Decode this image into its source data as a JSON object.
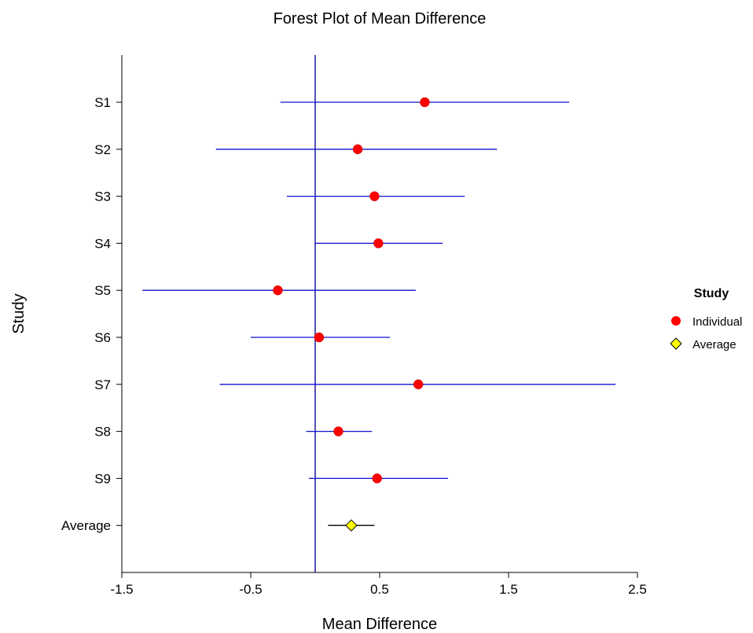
{
  "chart_data": {
    "type": "scatter",
    "title": "Forest Plot of Mean Difference",
    "xlabel": "Mean Difference",
    "ylabel": "Study",
    "xlim": [
      -1.5,
      2.5
    ],
    "xticks": [
      "-1.5",
      "-0.5",
      "0.5",
      "1.5",
      "2.5"
    ],
    "reference_line": 0.0,
    "studies": [
      {
        "label": "S1",
        "estimate": 0.85,
        "lower": -0.27,
        "upper": 1.97
      },
      {
        "label": "S2",
        "estimate": 0.33,
        "lower": -0.77,
        "upper": 1.41
      },
      {
        "label": "S3",
        "estimate": 0.46,
        "lower": -0.22,
        "upper": 1.16
      },
      {
        "label": "S4",
        "estimate": 0.49,
        "lower": 0.0,
        "upper": 0.99
      },
      {
        "label": "S5",
        "estimate": -0.29,
        "lower": -1.34,
        "upper": 0.78
      },
      {
        "label": "S6",
        "estimate": 0.03,
        "lower": -0.5,
        "upper": 0.58
      },
      {
        "label": "S7",
        "estimate": 0.8,
        "lower": -0.74,
        "upper": 2.33
      },
      {
        "label": "S8",
        "estimate": 0.18,
        "lower": -0.07,
        "upper": 0.44
      },
      {
        "label": "S9",
        "estimate": 0.48,
        "lower": -0.05,
        "upper": 1.03
      }
    ],
    "average": {
      "label": "Average",
      "estimate": 0.28,
      "lower": 0.1,
      "upper": 0.46
    },
    "legend": {
      "title": "Study",
      "placement": "right",
      "items": [
        {
          "label": "Individual",
          "marker": "circle",
          "color": "#ff0000"
        },
        {
          "label": "Average",
          "marker": "diamond",
          "color": "#ffff00"
        }
      ]
    },
    "colors": {
      "ci_line": "#1010d0",
      "average_ci_line": "#000000",
      "reference_line": "#1a1a9a"
    }
  }
}
